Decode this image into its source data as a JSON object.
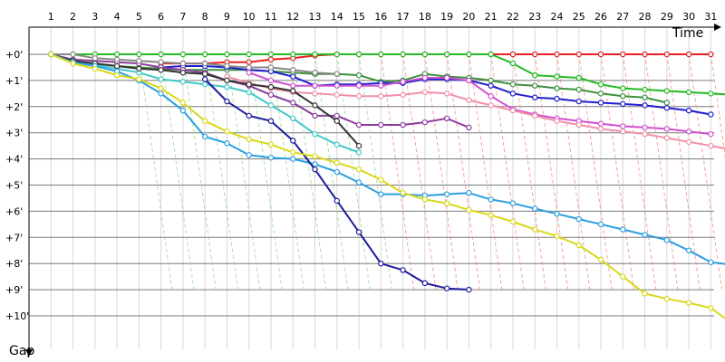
{
  "chart_data": {
    "type": "line",
    "title": "",
    "xlabel": "Time",
    "ylabel": "Gap",
    "x_ticks": [
      "1",
      "2",
      "3",
      "4",
      "5",
      "6",
      "7",
      "8",
      "9",
      "10",
      "11",
      "12",
      "13",
      "14",
      "15",
      "16",
      "17",
      "18",
      "19",
      "20",
      "21",
      "22",
      "23",
      "24",
      "25",
      "26",
      "27",
      "28",
      "29",
      "30",
      "31"
    ],
    "y_ticks": [
      "+0'",
      "+1'",
      "+2'",
      "+3'",
      "+4'",
      "+5'",
      "+6'",
      "+7'",
      "+8'",
      "+9'",
      "+10'"
    ],
    "xlim": [
      0,
      32
    ],
    "ylim": [
      0,
      11
    ],
    "y_inverted": true,
    "grid": true,
    "colors": {
      "red": "#e82020",
      "green": "#22bb22",
      "olive": "#3c903c",
      "blue": "#1f1fd0",
      "purple": "#8d3b9c",
      "magenta": "#d050d0",
      "pink": "#f090a8",
      "cyan": "#40c8c8",
      "gray": "#888888",
      "dark": "#333333",
      "lightblue": "#2b9fe0",
      "navy": "#1c1c9c",
      "yellow": "#d8d818"
    },
    "series": [
      {
        "color": "red",
        "x": [
          6,
          7,
          8,
          9,
          10,
          11,
          12,
          13,
          14,
          15,
          16,
          17,
          18,
          19,
          20,
          21,
          22,
          23,
          24,
          25,
          26,
          27,
          28,
          29,
          30,
          31
        ],
        "y": [
          0.35,
          0.35,
          0.35,
          0.3,
          0.3,
          0.2,
          0.15,
          0.05,
          0,
          0,
          0,
          0,
          0,
          0,
          0,
          0,
          0,
          0,
          0,
          0,
          0,
          0,
          0,
          0,
          0,
          0
        ]
      },
      {
        "color": "green",
        "x": [
          1,
          2,
          3,
          4,
          5,
          6,
          7,
          8,
          9,
          10,
          11,
          12,
          13,
          14,
          15,
          16,
          17,
          18,
          19,
          20,
          21,
          22,
          23,
          24,
          25,
          26,
          27,
          28,
          29,
          30,
          31,
          32
        ],
        "y": [
          0,
          0,
          0,
          0,
          0,
          0,
          0,
          0,
          0,
          0,
          0,
          0,
          0,
          0,
          0,
          0,
          0,
          0,
          0,
          0,
          0,
          0.35,
          0.8,
          0.85,
          0.9,
          1.15,
          1.3,
          1.35,
          1.4,
          1.45,
          1.5,
          1.55
        ]
      },
      {
        "color": "olive",
        "x": [
          2,
          3,
          4,
          5,
          6,
          7,
          8,
          9,
          10,
          11,
          12,
          13,
          14,
          15,
          16,
          17,
          18,
          19,
          20,
          21,
          22,
          23,
          24,
          25,
          26,
          27,
          28,
          29
        ],
        "y": [
          0.3,
          0.35,
          0.45,
          0.5,
          0.55,
          0.6,
          0.6,
          0.6,
          0.6,
          0.65,
          0.7,
          0.75,
          0.75,
          0.8,
          1.05,
          1.0,
          0.75,
          0.85,
          0.9,
          1.0,
          1.15,
          1.2,
          1.3,
          1.35,
          1.5,
          1.6,
          1.65,
          1.85
        ]
      },
      {
        "color": "blue",
        "x": [
          6,
          7,
          8,
          9,
          10,
          11,
          12,
          13,
          14,
          15,
          16,
          17,
          18,
          19,
          20,
          21,
          22,
          23,
          24,
          25,
          26,
          27,
          28,
          29,
          30,
          31
        ],
        "y": [
          0.5,
          0.45,
          0.45,
          0.5,
          0.6,
          0.65,
          0.85,
          1.2,
          1.15,
          1.15,
          1.1,
          1.1,
          0.95,
          0.95,
          1.0,
          1.2,
          1.5,
          1.65,
          1.7,
          1.8,
          1.85,
          1.9,
          1.95,
          2.05,
          2.15,
          2.3
        ]
      },
      {
        "color": "purple",
        "x": [
          1,
          2,
          3,
          4,
          5,
          6,
          7,
          8,
          9,
          10,
          11,
          12,
          13,
          14,
          15,
          16,
          17,
          18,
          19,
          20
        ],
        "y": [
          0,
          0.2,
          0.25,
          0.3,
          0.35,
          0.5,
          0.6,
          0.7,
          1.0,
          1.2,
          1.55,
          1.85,
          2.35,
          2.35,
          2.7,
          2.7,
          2.7,
          2.6,
          2.45,
          2.8
        ]
      },
      {
        "color": "magenta",
        "x": [
          10,
          11,
          12,
          13,
          14,
          15,
          16,
          17,
          18,
          19,
          20,
          21,
          22,
          23,
          24,
          25,
          26,
          27,
          28,
          29,
          30,
          31
        ],
        "y": [
          0.7,
          1.0,
          1.2,
          1.2,
          1.2,
          1.2,
          1.2,
          1.05,
          0.9,
          0.9,
          1.0,
          1.6,
          2.1,
          2.3,
          2.45,
          2.55,
          2.65,
          2.75,
          2.8,
          2.85,
          2.95,
          3.05
        ]
      },
      {
        "color": "pink",
        "x": [
          9,
          10,
          11,
          12,
          13,
          14,
          15,
          16,
          17,
          18,
          19,
          20,
          21,
          22,
          23,
          24,
          25,
          26,
          27,
          28,
          29,
          30,
          31,
          32
        ],
        "y": [
          0.85,
          1.1,
          1.3,
          1.45,
          1.5,
          1.55,
          1.6,
          1.6,
          1.55,
          1.45,
          1.5,
          1.75,
          1.95,
          2.15,
          2.35,
          2.55,
          2.7,
          2.85,
          2.95,
          3.05,
          3.2,
          3.35,
          3.5,
          3.65
        ]
      },
      {
        "color": "cyan",
        "x": [
          1,
          2,
          3,
          4,
          5,
          6,
          7,
          8,
          9,
          10,
          11,
          12,
          13,
          14,
          15
        ],
        "y": [
          0,
          0.25,
          0.4,
          0.55,
          0.7,
          0.95,
          1.05,
          1.15,
          1.25,
          1.45,
          1.95,
          2.45,
          3.05,
          3.45,
          3.75
        ]
      },
      {
        "color": "gray",
        "x": [
          1,
          2,
          3,
          4,
          5,
          6,
          7,
          8,
          9,
          10,
          11,
          12,
          13,
          14
        ],
        "y": [
          0,
          0,
          0.15,
          0.2,
          0.25,
          0.3,
          0.35,
          0.35,
          0.45,
          0.5,
          0.5,
          0.6,
          0.7,
          0.75
        ]
      },
      {
        "color": "dark",
        "x": [
          1,
          2,
          3,
          4,
          5,
          6,
          7,
          8,
          9,
          10,
          11,
          12,
          13,
          14,
          15
        ],
        "y": [
          0,
          0.25,
          0.35,
          0.45,
          0.55,
          0.6,
          0.7,
          0.75,
          1.0,
          1.15,
          1.25,
          1.4,
          1.95,
          2.55,
          3.5
        ]
      },
      {
        "color": "lightblue",
        "x": [
          1,
          2,
          3,
          4,
          5,
          6,
          7,
          8,
          9,
          10,
          11,
          12,
          13,
          14,
          15,
          16,
          17,
          18,
          19,
          20,
          21,
          22,
          23,
          24,
          25,
          26,
          27,
          28,
          29,
          30,
          31,
          32
        ],
        "y": [
          0,
          0.3,
          0.45,
          0.65,
          1.0,
          1.5,
          2.15,
          3.15,
          3.4,
          3.85,
          3.95,
          4.0,
          4.2,
          4.5,
          4.9,
          5.35,
          5.35,
          5.4,
          5.35,
          5.3,
          5.55,
          5.7,
          5.9,
          6.1,
          6.3,
          6.5,
          6.7,
          6.9,
          7.1,
          7.5,
          7.95,
          8.05
        ]
      },
      {
        "color": "navy",
        "x": [
          8,
          9,
          10,
          11,
          12,
          13,
          14,
          15,
          16,
          17,
          18,
          19,
          20
        ],
        "y": [
          0.95,
          1.8,
          2.35,
          2.55,
          3.3,
          4.4,
          5.6,
          6.8,
          8.0,
          8.25,
          8.75,
          8.95,
          9.0
        ]
      },
      {
        "color": "yellow",
        "x": [
          1,
          2,
          3,
          4,
          5,
          6,
          7,
          8,
          9,
          10,
          11,
          12,
          13,
          14,
          15,
          16,
          17,
          18,
          19,
          20,
          21,
          22,
          23,
          24,
          25,
          26,
          27,
          28,
          29,
          30,
          31,
          32
        ],
        "y": [
          0,
          0.35,
          0.55,
          0.8,
          0.95,
          1.3,
          1.85,
          2.55,
          2.95,
          3.25,
          3.45,
          3.75,
          3.9,
          4.15,
          4.4,
          4.8,
          5.3,
          5.55,
          5.7,
          5.95,
          6.15,
          6.4,
          6.7,
          6.95,
          7.3,
          7.85,
          8.5,
          9.15,
          9.35,
          9.5,
          9.7,
          10.3
        ]
      }
    ]
  }
}
